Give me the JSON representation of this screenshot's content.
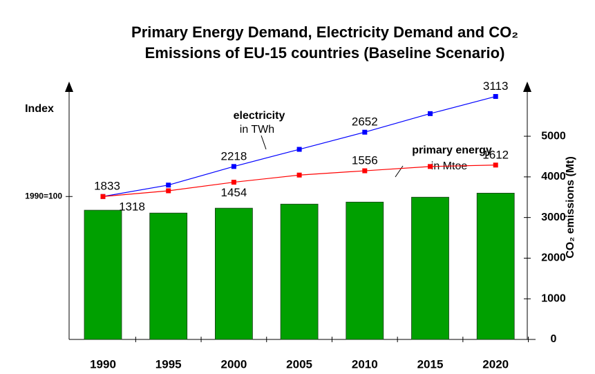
{
  "chart_data": {
    "type": "combo",
    "title": [
      "Primary Energy Demand, Electricity Demand and CO₂",
      "Emissions of EU-15 countries (Baseline Scenario)"
    ],
    "ylabel": "Index",
    "y2label": "CO₂ emissions (Mt)",
    "categories": [
      "1990",
      "1995",
      "2000",
      "2005",
      "2010",
      "2015",
      "2020"
    ],
    "ylim": [
      0,
      178
    ],
    "yticks": [
      {
        "value": 100,
        "label": "1990=100"
      }
    ],
    "y2lim": [
      0,
      6260
    ],
    "y2ticks": [
      0,
      1000,
      2000,
      3000,
      4000,
      5000
    ],
    "series": [
      {
        "type": "bar",
        "axis": "y2",
        "color": "#00a000",
        "values": [
          3180,
          3110,
          3230,
          3330,
          3380,
          3500,
          3600
        ]
      },
      {
        "type": "line",
        "color": "#0000ff",
        "values": [
          100,
          108,
          121,
          133,
          145,
          158,
          170
        ],
        "point_labels": [
          1833,
          null,
          2218,
          null,
          2652,
          null,
          3113
        ]
      },
      {
        "type": "line",
        "color": "#ff0000",
        "values": [
          100,
          104,
          110,
          115,
          118,
          121,
          122
        ],
        "point_labels": [
          1318,
          null,
          1454,
          null,
          1556,
          null,
          1612
        ]
      }
    ],
    "annotations": [
      "electricity",
      "in TWh",
      "primary energy",
      "in Mtoe"
    ]
  }
}
